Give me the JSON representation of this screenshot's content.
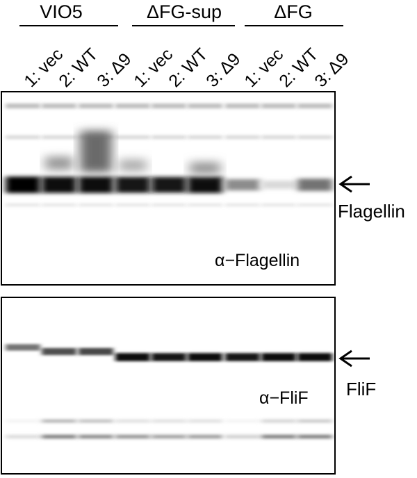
{
  "groups": [
    {
      "title": "VIO5"
    },
    {
      "title": "ΔFG-sup"
    },
    {
      "title": "ΔFG"
    }
  ],
  "lanes": [
    {
      "label": "1: vec"
    },
    {
      "label": "2: WT"
    },
    {
      "label": "3: Δ9"
    },
    {
      "label": "1: vec"
    },
    {
      "label": "2: WT"
    },
    {
      "label": "3: Δ9"
    },
    {
      "label": "1: vec"
    },
    {
      "label": "2: WT"
    },
    {
      "label": "3: Δ9"
    }
  ],
  "panels": [
    {
      "antibody": "α−Flagellin",
      "protein": "Flagellin",
      "band_intensity": [
        0.98,
        0.95,
        0.97,
        0.93,
        0.9,
        0.97,
        0.45,
        0.15,
        0.55
      ]
    },
    {
      "antibody": "α−FliF",
      "protein": "FliF",
      "band_intensity": [
        0.55,
        0.7,
        0.72,
        0.95,
        0.93,
        0.95,
        0.93,
        0.95,
        0.95
      ]
    }
  ]
}
